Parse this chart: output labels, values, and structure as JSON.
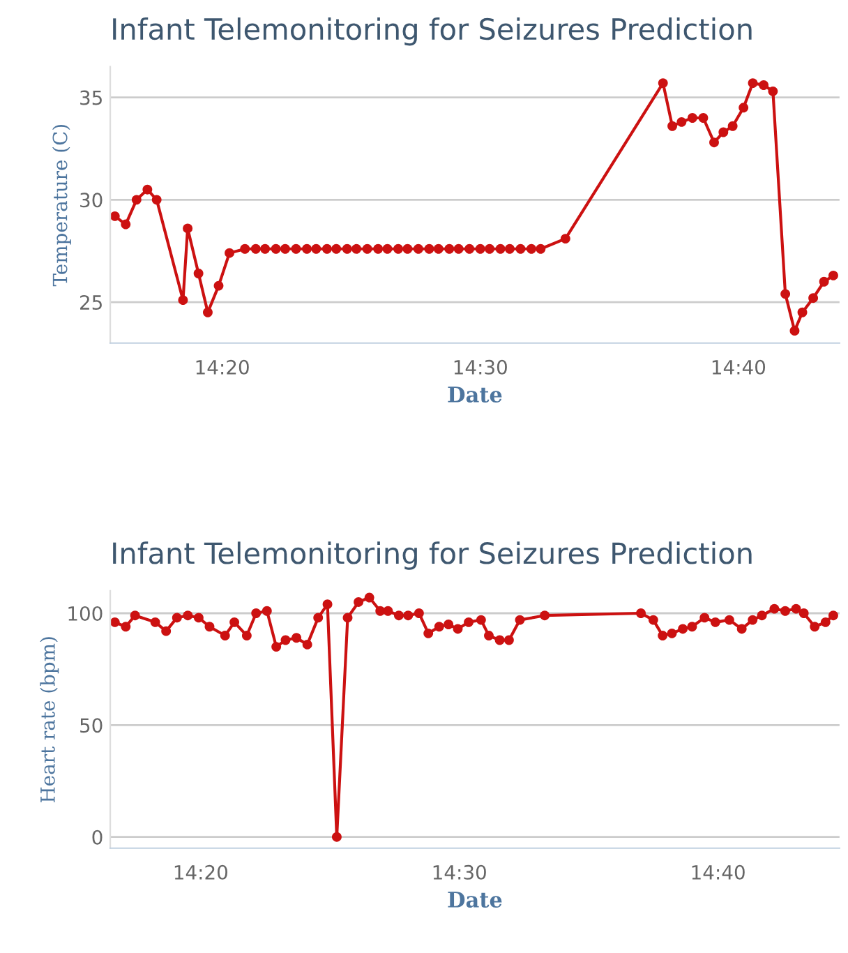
{
  "chart_data": [
    {
      "type": "line",
      "title": "Infant Telemonitoring for Seizures Prediction",
      "xlabel": "Date",
      "ylabel": "Temperature (C)",
      "grid": "y",
      "marker": "circle",
      "line_style": "solid",
      "xlim": [
        14.261,
        14.732
      ],
      "xticks": [
        {
          "value": 14.3333,
          "label": "14:20"
        },
        {
          "value": 14.5,
          "label": "14:30"
        },
        {
          "value": 14.6667,
          "label": "14:40"
        }
      ],
      "ylim": [
        23,
        36.5
      ],
      "yticks": [
        25,
        30,
        35
      ],
      "series": [
        {
          "color": "#cc1111",
          "x": [
            14.264,
            14.271,
            14.278,
            14.285,
            14.291,
            14.308,
            14.311,
            14.318,
            14.324,
            14.331,
            14.338,
            14.348,
            14.355,
            14.361,
            14.368,
            14.374,
            14.381,
            14.388,
            14.394,
            14.401,
            14.407,
            14.414,
            14.42,
            14.427,
            14.434,
            14.44,
            14.447,
            14.453,
            14.46,
            14.467,
            14.473,
            14.48,
            14.486,
            14.493,
            14.5,
            14.506,
            14.513,
            14.519,
            14.526,
            14.533,
            14.539,
            14.555,
            14.618,
            14.624,
            14.63,
            14.637,
            14.644,
            14.651,
            14.657,
            14.663,
            14.67,
            14.676,
            14.683,
            14.689,
            14.697,
            14.703,
            14.708,
            14.715,
            14.722,
            14.728
          ],
          "values": [
            29.2,
            28.8,
            30.0,
            30.5,
            30.0,
            25.1,
            28.6,
            26.4,
            24.5,
            25.8,
            27.4,
            27.6,
            27.6,
            27.6,
            27.6,
            27.6,
            27.6,
            27.6,
            27.6,
            27.6,
            27.6,
            27.6,
            27.6,
            27.6,
            27.6,
            27.6,
            27.6,
            27.6,
            27.6,
            27.6,
            27.6,
            27.6,
            27.6,
            27.6,
            27.6,
            27.6,
            27.6,
            27.6,
            27.6,
            27.6,
            27.6,
            28.1,
            35.7,
            33.6,
            33.8,
            34.0,
            34.0,
            32.8,
            33.3,
            33.6,
            34.5,
            35.7,
            35.6,
            35.3,
            25.4,
            23.6,
            24.5,
            25.2,
            26.0,
            26.3
          ]
        }
      ]
    },
    {
      "type": "line",
      "title": "Infant Telemonitoring for Seizures Prediction",
      "xlabel": "Date",
      "ylabel": "Heart rate (bpm)",
      "grid": "y",
      "marker": "circle",
      "line_style": "solid",
      "xlim": [
        14.275,
        14.745
      ],
      "xticks": [
        {
          "value": 14.3333,
          "label": "14:20"
        },
        {
          "value": 14.5,
          "label": "14:30"
        },
        {
          "value": 14.6667,
          "label": "14:40"
        }
      ],
      "ylim": [
        -5,
        110
      ],
      "yticks": [
        0,
        50,
        100
      ],
      "series": [
        {
          "color": "#cc1111",
          "x": [
            14.278,
            14.285,
            14.291,
            14.304,
            14.311,
            14.318,
            14.325,
            14.332,
            14.339,
            14.349,
            14.355,
            14.363,
            14.369,
            14.376,
            14.382,
            14.388,
            14.395,
            14.402,
            14.409,
            14.415,
            14.421,
            14.428,
            14.435,
            14.442,
            14.449,
            14.454,
            14.461,
            14.467,
            14.474,
            14.48,
            14.487,
            14.493,
            14.499,
            14.506,
            14.514,
            14.519,
            14.526,
            14.532,
            14.539,
            14.555,
            14.617,
            14.625,
            14.631,
            14.637,
            14.644,
            14.65,
            14.658,
            14.665,
            14.674,
            14.682,
            14.689,
            14.695,
            14.703,
            14.71,
            14.717,
            14.722,
            14.729,
            14.736,
            14.741
          ],
          "values": [
            96,
            94,
            99,
            96,
            92,
            98,
            99,
            98,
            94,
            90,
            96,
            90,
            100,
            101,
            85,
            88,
            89,
            86,
            98,
            104,
            0,
            98,
            105,
            107,
            101,
            101,
            99,
            99,
            100,
            91,
            94,
            95,
            93,
            96,
            97,
            90,
            88,
            88,
            97,
            99,
            100,
            97,
            90,
            91,
            93,
            94,
            98,
            96,
            97,
            93,
            97,
            99,
            102,
            101,
            102,
            100,
            94,
            96,
            99
          ]
        }
      ]
    }
  ]
}
